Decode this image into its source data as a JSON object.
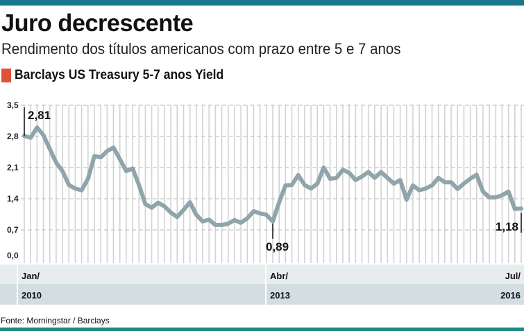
{
  "header": {
    "title": "Juro decrescente",
    "subtitle": "Rendimento dos títulos americanos com prazo entre 5 e 7 anos",
    "legend_label": "Barclays US Treasury 5-7 anos Yield"
  },
  "colors": {
    "top_bar": "#17788c",
    "bottom_bar": "#1b8a80",
    "legend_swatch": "#e0503a",
    "line": "#8fa5ab",
    "band_light": "#e7edef",
    "band_dark": "#d3dee3"
  },
  "source": "Fonte: Morningstar / Barclays",
  "chart_data": {
    "type": "line",
    "title": "Barclays US Treasury 5-7 anos Yield",
    "xlabel": "",
    "ylabel": "",
    "ylim": [
      0,
      3.5
    ],
    "yticks": [
      "0,0",
      "0,7",
      "1,4",
      "2,1",
      "2,8",
      "3,5"
    ],
    "ytick_values": [
      0,
      0.7,
      1.4,
      2.1,
      2.8,
      3.5
    ],
    "x_start": "Jan/2010",
    "x_end": "Jul/2016",
    "frequency": "monthly",
    "xticks": [
      {
        "month": "Jan/",
        "year": "2010",
        "index": 0
      },
      {
        "month": "Abr/",
        "year": "2013",
        "index": 39
      },
      {
        "month": "Jul/",
        "year": "2016",
        "index": 78
      }
    ],
    "grid": true,
    "series": [
      {
        "name": "Barclays US Treasury 5-7 anos Yield",
        "values": [
          2.81,
          2.77,
          3.0,
          2.83,
          2.52,
          2.21,
          2.02,
          1.71,
          1.63,
          1.59,
          1.85,
          2.36,
          2.33,
          2.47,
          2.55,
          2.29,
          2.02,
          2.08,
          1.71,
          1.28,
          1.2,
          1.31,
          1.23,
          1.09,
          0.99,
          1.15,
          1.32,
          1.04,
          0.89,
          0.93,
          0.81,
          0.81,
          0.84,
          0.92,
          0.86,
          0.96,
          1.12,
          1.07,
          1.04,
          0.89,
          1.32,
          1.7,
          1.71,
          1.93,
          1.71,
          1.63,
          1.74,
          2.1,
          1.85,
          1.87,
          2.05,
          1.98,
          1.82,
          1.9,
          2.0,
          1.87,
          2.0,
          1.87,
          1.74,
          1.82,
          1.38,
          1.7,
          1.59,
          1.63,
          1.7,
          1.87,
          1.77,
          1.77,
          1.62,
          1.74,
          1.85,
          1.94,
          1.56,
          1.43,
          1.43,
          1.48,
          1.56,
          1.17,
          1.18
        ]
      }
    ],
    "annotations": [
      {
        "text": "2,81",
        "index": 0
      },
      {
        "text": "0,89",
        "index": 39
      },
      {
        "text": "1,18",
        "index": 78
      }
    ]
  }
}
